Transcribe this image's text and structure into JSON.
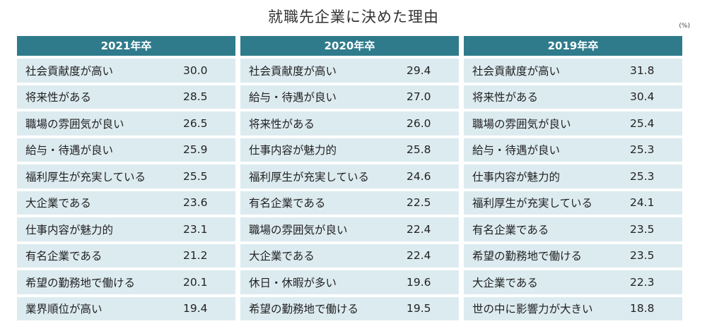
{
  "chart_data": {
    "type": "table",
    "title": "就職先企業に決めた理由",
    "unit": "(%)",
    "columns": [
      {
        "year": "2021年卒",
        "rows": [
          {
            "reason": "社会貢献度が高い",
            "value": "30.0"
          },
          {
            "reason": "将来性がある",
            "value": "28.5"
          },
          {
            "reason": "職場の雰囲気が良い",
            "value": "26.5"
          },
          {
            "reason": "給与・待遇が良い",
            "value": "25.9"
          },
          {
            "reason": "福利厚生が充実している",
            "value": "25.5"
          },
          {
            "reason": "大企業である",
            "value": "23.6"
          },
          {
            "reason": "仕事内容が魅力的",
            "value": "23.1"
          },
          {
            "reason": "有名企業である",
            "value": "21.2"
          },
          {
            "reason": "希望の勤務地で働ける",
            "value": "20.1"
          },
          {
            "reason": "業界順位が高い",
            "value": "19.4"
          }
        ]
      },
      {
        "year": "2020年卒",
        "rows": [
          {
            "reason": "社会貢献度が高い",
            "value": "29.4"
          },
          {
            "reason": "給与・待遇が良い",
            "value": "27.0"
          },
          {
            "reason": "将来性がある",
            "value": "26.0"
          },
          {
            "reason": "仕事内容が魅力的",
            "value": "25.8"
          },
          {
            "reason": "福利厚生が充実している",
            "value": "24.6"
          },
          {
            "reason": "有名企業である",
            "value": "22.5"
          },
          {
            "reason": "職場の雰囲気が良い",
            "value": "22.4"
          },
          {
            "reason": "大企業である",
            "value": "22.4"
          },
          {
            "reason": "休日・休暇が多い",
            "value": "19.6"
          },
          {
            "reason": "希望の勤務地で働ける",
            "value": "19.5"
          }
        ]
      },
      {
        "year": "2019年卒",
        "rows": [
          {
            "reason": "社会貢献度が高い",
            "value": "31.8"
          },
          {
            "reason": "将来性がある",
            "value": "30.4"
          },
          {
            "reason": "職場の雰囲気が良い",
            "value": "25.4"
          },
          {
            "reason": "給与・待遇が良い",
            "value": "25.3"
          },
          {
            "reason": "仕事内容が魅力的",
            "value": "25.3"
          },
          {
            "reason": "福利厚生が充実している",
            "value": "24.1"
          },
          {
            "reason": "有名企業である",
            "value": "23.5"
          },
          {
            "reason": "希望の勤務地で働ける",
            "value": "23.5"
          },
          {
            "reason": "大企業である",
            "value": "22.3"
          },
          {
            "reason": "世の中に影響力が大きい",
            "value": "18.8"
          }
        ]
      }
    ],
    "colors": {
      "header": "#2f7b8c",
      "row": "#dcebf0"
    }
  }
}
